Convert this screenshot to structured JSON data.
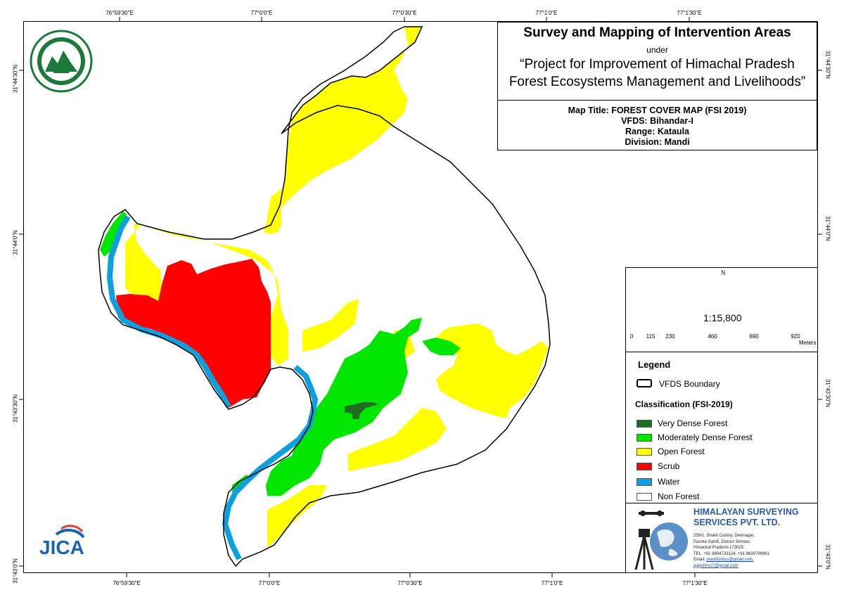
{
  "title": {
    "main": "Survey and Mapping of Intervention Areas",
    "under": "under",
    "project_line1": "“Project for Improvement of Himachal Pradesh",
    "project_line2": "Forest Ecosystems Management and Livelihoods”"
  },
  "info": {
    "map_title": "Map Title: FOREST COVER MAP (FSI 2019)",
    "vfds": "VFDS: Bihandar-I",
    "range": "Range: Kataula",
    "division": "Division: Mandi"
  },
  "coords": {
    "top": [
      "76°59'30\"E",
      "77°0'0\"E",
      "77°0'30\"E",
      "77°1'0\"E",
      "77°1'30\"E"
    ],
    "bottom": [
      "76°59'30\"E",
      "77°0'0\"E",
      "77°0'30\"E",
      "77°1'0\"E",
      "77°1'30\"E"
    ],
    "left": [
      "31°44'30\"N",
      "31°44'0\"N",
      "31°43'30\"N",
      "31°43'0\"N"
    ],
    "right": [
      "31°44'30\"N",
      "31°44'0\"N",
      "31°43'30\"N",
      "31°43'0\"N"
    ]
  },
  "north_arrow": {
    "label": "N",
    "icon": "compass-rose-icon"
  },
  "scale": {
    "ratio": "1:15,800",
    "ticks": [
      "0",
      "115",
      "230",
      "460",
      "690",
      "920"
    ],
    "unit": "Meters"
  },
  "legend": {
    "title": "Legend",
    "boundary_label": "VFDS Boundary",
    "classification_title": "Classification (FSI-2019)",
    "classes": [
      {
        "label": "Very Dense Forest",
        "color": "#1f6b1f"
      },
      {
        "label": "Moderately Dense Forest",
        "color": "#00e600"
      },
      {
        "label": "Open Forest",
        "color": "#ffff00"
      },
      {
        "label": "Scrub",
        "color": "#ff0000"
      },
      {
        "label": "Water",
        "color": "#0ea0dc"
      },
      {
        "label": "Non Forest",
        "color": "#ffffff"
      }
    ]
  },
  "company": {
    "name_line1": "HIMALAYAN SURVEYING",
    "name_line2": "SERVICES PVT. LTD.",
    "address_line1": "259/1, Shakti Colony, Devinagar,",
    "address_line2": "Paonta Sahib, District Sirmour,",
    "address_line3": "Himachal Pradesh-173025",
    "phone": "TEL: +91 8894733124, +91 8630799961",
    "email_label": "Email: ",
    "email1": "prasthsshss@gmail.com,",
    "email2": "ajayshhss7@gmail.com"
  },
  "logos": {
    "jica": "JICA",
    "emblem_icon": "hp-forest-department-emblem-icon"
  }
}
